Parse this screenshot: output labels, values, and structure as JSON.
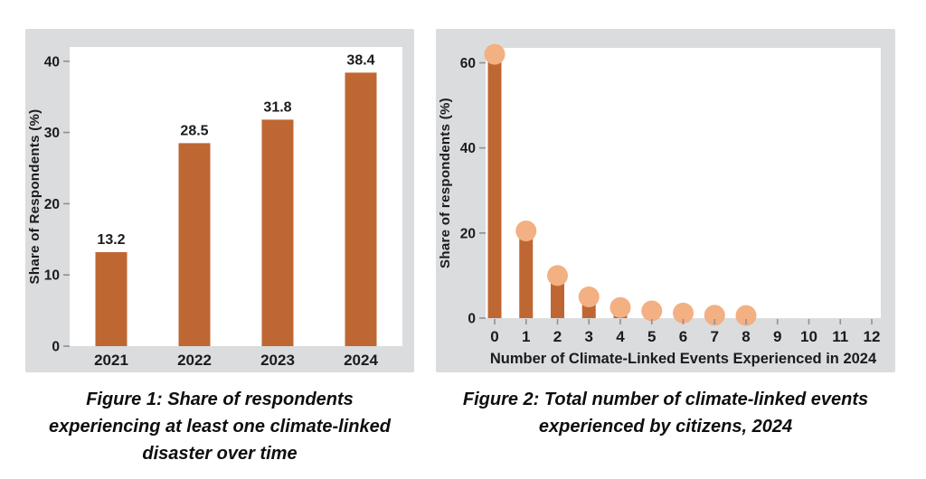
{
  "colors": {
    "page_bg": "#ffffff",
    "panel_bg": "#dbdcde",
    "plot_bg": "#ffffff",
    "bar": "#bf6733",
    "dot": "#f2b083",
    "tick": "#8f9094",
    "axis_text": "#1b1b1d",
    "caption_text": "#0e0e0e"
  },
  "chart_data": [
    {
      "type": "bar",
      "title": "Figure 1: Share of respondents experiencing at least one climate-linked disaster over time",
      "caption_lines": [
        "Figure 1: Share of respondents",
        "experiencing at least one climate-linked",
        "disaster over time"
      ],
      "categories": [
        "2021",
        "2022",
        "2023",
        "2024"
      ],
      "values": [
        13.2,
        28.5,
        31.8,
        38.4
      ],
      "data_labels": [
        "13.2",
        "28.5",
        "31.8",
        "38.4"
      ],
      "xlabel": "",
      "ylabel": "Share of Respondents (%)",
      "yticks": [
        0,
        10,
        20,
        30,
        40
      ],
      "ylim": [
        0,
        42
      ],
      "grid": false,
      "legend": "none"
    },
    {
      "type": "bar",
      "subtype": "lollipop",
      "title": "Figure 2: Total number of climate-linked events experienced by citizens, 2024",
      "caption_lines": [
        "Figure 2: Total number of climate-linked events",
        "experienced by citizens, 2024"
      ],
      "categories": [
        "0",
        "1",
        "2",
        "3",
        "4",
        "5",
        "6",
        "7",
        "8",
        "9",
        "10",
        "11",
        "12"
      ],
      "values": [
        62,
        20.5,
        10,
        5,
        2.5,
        1.7,
        1.2,
        0.7,
        0.6,
        null,
        null,
        null,
        null
      ],
      "xlabel": "Number of Climate-Linked Events Experienced in 2024",
      "ylabel": "Share of respondents (%)",
      "yticks": [
        0,
        20,
        40,
        60
      ],
      "ylim": [
        0,
        63.5
      ],
      "grid": false,
      "legend": "none"
    }
  ]
}
